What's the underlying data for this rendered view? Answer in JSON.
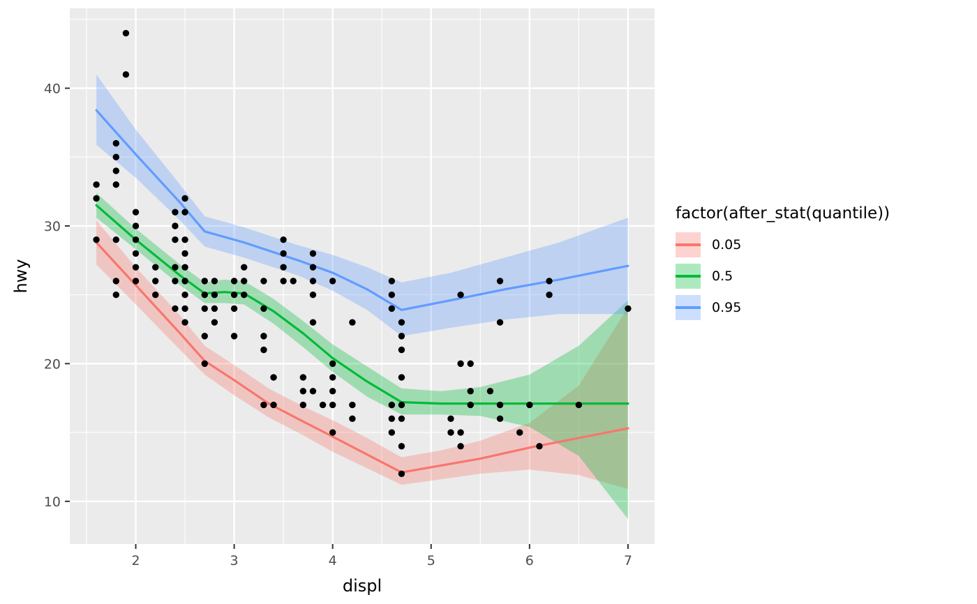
{
  "chart_data": {
    "type": "scatter",
    "title": "",
    "xlabel": "displ",
    "ylabel": "hwy",
    "xlim": [
      1.33,
      7.27
    ],
    "ylim": [
      6.9,
      45.8
    ],
    "x_major_ticks": [
      2,
      3,
      4,
      5,
      6,
      7
    ],
    "x_minor_ticks": [
      1.5,
      2.5,
      3.5,
      4.5,
      5.5,
      6.5
    ],
    "y_major_ticks": [
      10,
      20,
      30,
      40
    ],
    "y_minor_ticks": [
      15,
      25,
      35,
      45
    ],
    "grid": "on",
    "panel_bg": "#EBEBEB",
    "grid_color": "#FFFFFF",
    "tick_label_color": "#4D4D4D",
    "tick_mark_color": "#333333",
    "point_color": "#000000",
    "ribbon_alpha": 0.32,
    "points": [
      [
        1.6,
        29
      ],
      [
        1.6,
        32
      ],
      [
        1.6,
        33
      ],
      [
        1.8,
        25
      ],
      [
        1.8,
        26
      ],
      [
        1.8,
        29
      ],
      [
        1.8,
        33
      ],
      [
        1.8,
        34
      ],
      [
        1.8,
        35
      ],
      [
        1.8,
        36
      ],
      [
        1.9,
        41
      ],
      [
        1.9,
        44
      ],
      [
        2.0,
        26
      ],
      [
        2.0,
        27
      ],
      [
        2.0,
        28
      ],
      [
        2.0,
        29
      ],
      [
        2.0,
        30
      ],
      [
        2.0,
        31
      ],
      [
        2.2,
        25
      ],
      [
        2.2,
        26
      ],
      [
        2.2,
        27
      ],
      [
        2.4,
        24
      ],
      [
        2.4,
        26
      ],
      [
        2.4,
        27
      ],
      [
        2.4,
        29
      ],
      [
        2.4,
        30
      ],
      [
        2.4,
        31
      ],
      [
        2.5,
        23
      ],
      [
        2.5,
        24
      ],
      [
        2.5,
        25
      ],
      [
        2.5,
        26
      ],
      [
        2.5,
        27
      ],
      [
        2.5,
        28
      ],
      [
        2.5,
        29
      ],
      [
        2.5,
        31
      ],
      [
        2.5,
        32
      ],
      [
        2.7,
        20
      ],
      [
        2.7,
        22
      ],
      [
        2.7,
        24
      ],
      [
        2.7,
        25
      ],
      [
        2.7,
        26
      ],
      [
        2.8,
        23
      ],
      [
        2.8,
        24
      ],
      [
        2.8,
        25
      ],
      [
        2.8,
        26
      ],
      [
        3.0,
        22
      ],
      [
        3.0,
        24
      ],
      [
        3.0,
        25
      ],
      [
        3.0,
        26
      ],
      [
        3.1,
        25
      ],
      [
        3.1,
        26
      ],
      [
        3.1,
        27
      ],
      [
        3.3,
        17
      ],
      [
        3.3,
        21
      ],
      [
        3.3,
        22
      ],
      [
        3.3,
        24
      ],
      [
        3.3,
        26
      ],
      [
        3.4,
        17
      ],
      [
        3.4,
        19
      ],
      [
        3.5,
        26
      ],
      [
        3.5,
        27
      ],
      [
        3.5,
        28
      ],
      [
        3.5,
        29
      ],
      [
        3.6,
        26
      ],
      [
        3.7,
        17
      ],
      [
        3.7,
        18
      ],
      [
        3.7,
        19
      ],
      [
        3.8,
        18
      ],
      [
        3.8,
        23
      ],
      [
        3.8,
        25
      ],
      [
        3.8,
        26
      ],
      [
        3.8,
        27
      ],
      [
        3.8,
        28
      ],
      [
        3.9,
        17
      ],
      [
        4.0,
        15
      ],
      [
        4.0,
        17
      ],
      [
        4.0,
        18
      ],
      [
        4.0,
        19
      ],
      [
        4.0,
        20
      ],
      [
        4.0,
        26
      ],
      [
        4.2,
        16
      ],
      [
        4.2,
        17
      ],
      [
        4.2,
        23
      ],
      [
        4.6,
        15
      ],
      [
        4.6,
        16
      ],
      [
        4.6,
        17
      ],
      [
        4.6,
        24
      ],
      [
        4.6,
        25
      ],
      [
        4.6,
        26
      ],
      [
        4.7,
        12
      ],
      [
        4.7,
        14
      ],
      [
        4.7,
        16
      ],
      [
        4.7,
        17
      ],
      [
        4.7,
        19
      ],
      [
        4.7,
        21
      ],
      [
        4.7,
        22
      ],
      [
        4.7,
        23
      ],
      [
        5.2,
        15
      ],
      [
        5.2,
        16
      ],
      [
        5.3,
        14
      ],
      [
        5.3,
        15
      ],
      [
        5.3,
        20
      ],
      [
        5.3,
        25
      ],
      [
        5.4,
        17
      ],
      [
        5.4,
        18
      ],
      [
        5.4,
        20
      ],
      [
        5.6,
        18
      ],
      [
        5.7,
        16
      ],
      [
        5.7,
        17
      ],
      [
        5.7,
        23
      ],
      [
        5.7,
        26
      ],
      [
        5.9,
        15
      ],
      [
        6.0,
        17
      ],
      [
        6.1,
        14
      ],
      [
        6.2,
        25
      ],
      [
        6.2,
        26
      ],
      [
        6.5,
        17
      ],
      [
        7.0,
        24
      ]
    ],
    "quantile_series": [
      {
        "name": "0.05",
        "color": "#F8766D",
        "x": [
          1.6,
          2.0,
          2.45,
          2.7,
          3.0,
          3.35,
          3.7,
          4.0,
          4.35,
          4.7,
          5.1,
          5.5,
          6.0,
          6.5,
          7.0
        ],
        "y": [
          28.8,
          25.7,
          22.2,
          20.2,
          18.8,
          17.1,
          15.8,
          14.7,
          13.4,
          12.1,
          12.6,
          13.1,
          13.9,
          14.6,
          15.3
        ],
        "ymin": [
          27.2,
          24.3,
          21.0,
          19.2,
          17.7,
          16.1,
          14.8,
          13.6,
          12.4,
          11.2,
          11.6,
          12.0,
          12.3,
          11.9,
          10.9
        ],
        "ymax": [
          30.4,
          27.0,
          23.5,
          21.3,
          19.9,
          18.2,
          16.9,
          15.9,
          14.6,
          13.2,
          13.7,
          14.4,
          15.7,
          18.4,
          24.1
        ]
      },
      {
        "name": "0.5",
        "color": "#00BA38",
        "x": [
          1.6,
          2.0,
          2.45,
          2.7,
          2.9,
          3.1,
          3.4,
          3.7,
          4.0,
          4.35,
          4.7,
          5.1,
          5.5,
          6.0,
          6.5,
          7.0
        ],
        "y": [
          31.5,
          29.0,
          26.4,
          25.1,
          25.2,
          25.1,
          23.8,
          22.2,
          20.4,
          18.7,
          17.2,
          17.1,
          17.1,
          17.1,
          17.1,
          17.1
        ],
        "ymin": [
          30.6,
          28.3,
          25.7,
          24.4,
          24.4,
          24.3,
          22.9,
          21.2,
          19.4,
          17.6,
          16.3,
          16.3,
          16.2,
          15.4,
          13.3,
          8.7
        ],
        "ymax": [
          32.4,
          29.8,
          27.2,
          25.9,
          26.1,
          26.0,
          24.7,
          23.1,
          21.4,
          19.8,
          18.2,
          18.0,
          18.3,
          19.2,
          21.3,
          24.6
        ]
      },
      {
        "name": "0.95",
        "color": "#619CFF",
        "x": [
          1.6,
          2.0,
          2.45,
          2.7,
          3.1,
          3.65,
          4.0,
          4.35,
          4.7,
          5.2,
          5.75,
          6.3,
          7.0
        ],
        "y": [
          38.4,
          35.2,
          31.7,
          29.6,
          28.8,
          27.5,
          26.6,
          25.4,
          23.9,
          24.6,
          25.4,
          26.1,
          27.1
        ],
        "ymin": [
          35.9,
          33.5,
          30.4,
          28.5,
          27.7,
          26.4,
          25.3,
          23.9,
          22.0,
          22.6,
          23.2,
          23.6,
          23.6
        ],
        "ymax": [
          41.0,
          37.0,
          33.0,
          30.7,
          29.9,
          28.6,
          27.9,
          27.0,
          25.9,
          26.6,
          27.7,
          28.8,
          30.6
        ]
      }
    ],
    "legend": {
      "title": "factor(after_stat(quantile))",
      "position": "right",
      "entries": [
        "0.05",
        "0.5",
        "0.95"
      ]
    }
  }
}
